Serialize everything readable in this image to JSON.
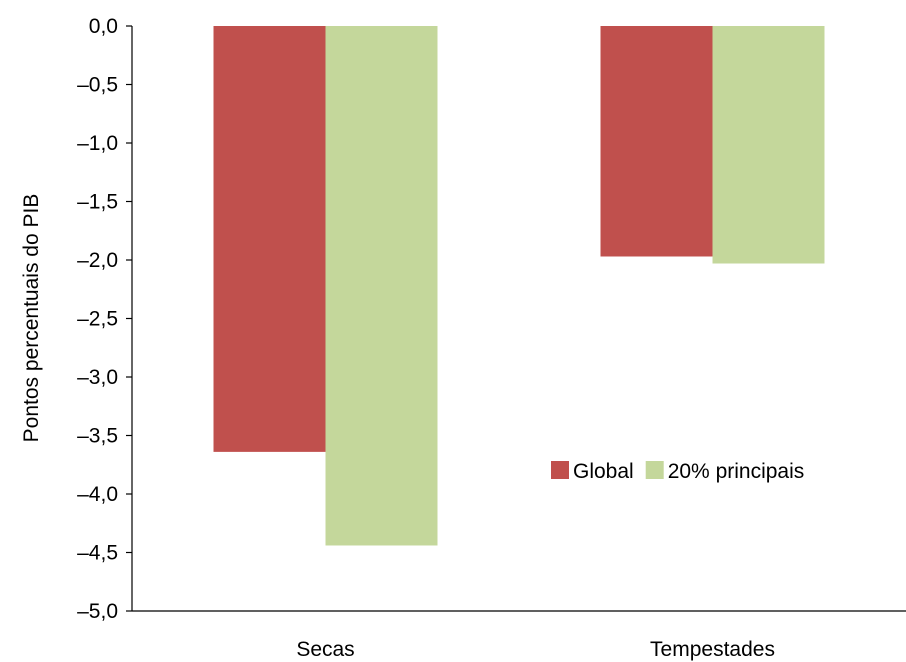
{
  "chart_data": {
    "type": "bar",
    "categories": [
      "Secas",
      "Tempestades"
    ],
    "series": [
      {
        "name": "Global",
        "values": [
          -3.64,
          -1.97
        ],
        "color": "#c0504d"
      },
      {
        "name": "20% principais",
        "values": [
          -4.44,
          -2.03
        ],
        "color": "#c4d79b"
      }
    ],
    "ylabel": "Pontos percentuais do PIB",
    "xlabel": "",
    "ylim": [
      -5.0,
      0.0
    ],
    "yticks": [
      "0,0",
      "–0,5",
      "–1,0",
      "–1,5",
      "–2,0",
      "–2,5",
      "–3,0",
      "–3,5",
      "–4,0",
      "–4,5",
      "–5,0"
    ],
    "ytick_values": [
      0.0,
      -0.5,
      -1.0,
      -1.5,
      -2.0,
      -2.5,
      -3.0,
      -3.5,
      -4.0,
      -4.5,
      -5.0
    ],
    "grid": false,
    "legend_position": "inside-lower-right"
  }
}
